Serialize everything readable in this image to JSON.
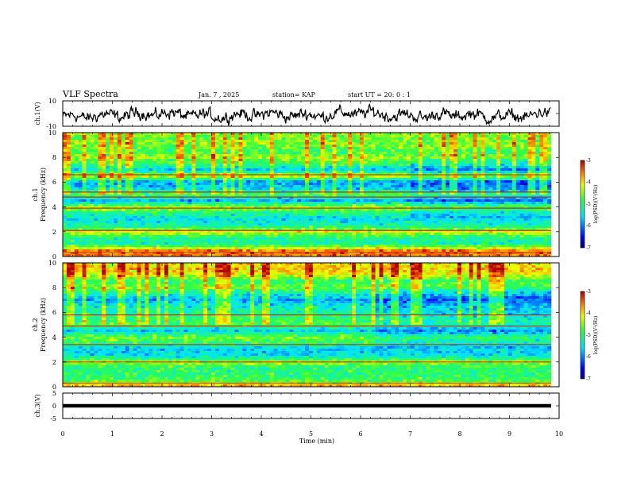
{
  "header": {
    "title": "VLF Spectra",
    "date": "Jan. 7 , 2025",
    "station": "station= KAP",
    "start": "start UT =  20: 0  : 1"
  },
  "chart_data": [
    {
      "type": "line",
      "panel": "ch1-waveform",
      "ylabel": "ch.1(V)",
      "ylim": [
        -10,
        10
      ],
      "yticks": [
        "10",
        "-10"
      ],
      "xlim": [
        0,
        10
      ],
      "shown_until": 9.84,
      "mean_level": -1,
      "fluctuation_amplitude": 4,
      "x": [
        0,
        1,
        2,
        3,
        4,
        5,
        6,
        7,
        8,
        9,
        9.84
      ],
      "y": [
        -3,
        -1,
        2,
        -2,
        1,
        -1,
        3,
        -2,
        0,
        -3,
        2
      ]
    },
    {
      "type": "heatmap",
      "panel": "ch1-spectrogram",
      "ylabel": "ch.1 Frequency (kHz)",
      "ylabel_channel": "ch.1",
      "ylabel_text": "Frequency (kHz)",
      "ylim": [
        0,
        10
      ],
      "yticks": [
        "0",
        "2",
        "4",
        "6",
        "8",
        "10"
      ],
      "xlim": [
        0,
        10
      ],
      "shown_until": 9.84,
      "colorscale": "jet",
      "clim": [
        -7,
        -3
      ],
      "colorbar_label": "log(PSD)(V²/Hz)",
      "colorbar_ticks": [
        "-3",
        "-4",
        "-5",
        "-6",
        "-7"
      ],
      "spectral_profile_freq_khz": [
        0,
        0.5,
        1,
        1.5,
        2,
        2.5,
        3,
        3.5,
        4,
        4.5,
        5,
        5.5,
        6,
        6.5,
        7,
        7.5,
        8,
        8.5,
        9,
        9.5,
        10
      ],
      "spectral_profile_log_psd": [
        -3.5,
        -3.6,
        -5.2,
        -5.1,
        -4.2,
        -5.2,
        -5.5,
        -5.1,
        -4.3,
        -5.8,
        -4.7,
        -5.6,
        -5.9,
        -4.2,
        -5.7,
        -4.9,
        -4.4,
        -4.9,
        -4.5,
        -4.6,
        -4.5
      ],
      "horizontal_lines_khz": [
        0.3,
        2.1,
        3.9,
        4.8,
        5.2,
        6.6
      ],
      "change_time_min": 7.0
    },
    {
      "type": "heatmap",
      "panel": "ch2-spectrogram",
      "ylabel": "ch.2 Frequency (kHz)",
      "ylabel_channel": "ch.2",
      "ylabel_text": "Frequency (kHz)",
      "ylim": [
        0,
        10
      ],
      "yticks": [
        "0",
        "2",
        "4",
        "6",
        "8",
        "10"
      ],
      "xlim": [
        0,
        10
      ],
      "shown_until": 9.84,
      "colorscale": "jet",
      "clim": [
        -7,
        -3
      ],
      "colorbar_label": "log(PSD)(V²/Hz)",
      "colorbar_ticks": [
        "-3",
        "-4",
        "-5",
        "-6",
        "-7"
      ],
      "spectral_profile_freq_khz": [
        0,
        0.5,
        1,
        1.5,
        2,
        2.5,
        3,
        3.5,
        4,
        4.5,
        5,
        5.5,
        6,
        6.5,
        7,
        7.5,
        8,
        8.5,
        9,
        9.5,
        10
      ],
      "spectral_profile_log_psd": [
        -3.6,
        -4.8,
        -5.0,
        -5.0,
        -4.4,
        -5.5,
        -5.6,
        -5.0,
        -4.6,
        -5.6,
        -4.8,
        -5.0,
        -5.2,
        -5.4,
        -5.8,
        -5.3,
        -4.6,
        -5.0,
        -4.2,
        -3.9,
        -4.1
      ],
      "horizontal_lines_khz": [
        0.3,
        2.0,
        3.4,
        4.9,
        5.8
      ],
      "change_time_min": 6.3
    },
    {
      "type": "line",
      "panel": "ch3-signal",
      "ylabel": "ch.3(V)",
      "ylim": [
        -5,
        5
      ],
      "yticks": [
        "5",
        "0",
        "-5"
      ],
      "xlim": [
        0,
        10
      ],
      "shown_until": 9.84,
      "x": [
        0,
        9.84
      ],
      "y": [
        0,
        0
      ],
      "band_halfwidth_v": 0.7,
      "xlabel": "Time  (min)",
      "xticks": [
        "0",
        "1",
        "2",
        "3",
        "4",
        "5",
        "6",
        "7",
        "8",
        "9",
        "10"
      ]
    }
  ]
}
